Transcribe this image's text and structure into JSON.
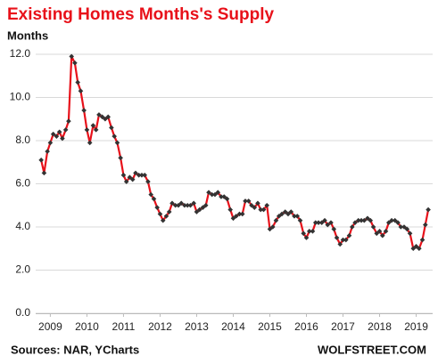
{
  "chart_data": {
    "type": "line",
    "title": "Existing Homes Months's Supply",
    "y_label": "Months",
    "source": "Sources: NAR, YCharts",
    "watermark": "WOLFSTREET.COM",
    "x": [
      2008.75,
      2008.83,
      2008.92,
      2009.0,
      2009.08,
      2009.17,
      2009.25,
      2009.33,
      2009.42,
      2009.5,
      2009.58,
      2009.67,
      2009.75,
      2009.83,
      2009.92,
      2010.0,
      2010.08,
      2010.17,
      2010.25,
      2010.33,
      2010.42,
      2010.5,
      2010.58,
      2010.67,
      2010.75,
      2010.83,
      2010.92,
      2011.0,
      2011.08,
      2011.17,
      2011.25,
      2011.33,
      2011.42,
      2011.5,
      2011.58,
      2011.67,
      2011.75,
      2011.83,
      2011.92,
      2012.0,
      2012.08,
      2012.17,
      2012.25,
      2012.33,
      2012.42,
      2012.5,
      2012.58,
      2012.67,
      2012.75,
      2012.83,
      2012.92,
      2013.0,
      2013.08,
      2013.17,
      2013.25,
      2013.33,
      2013.42,
      2013.5,
      2013.58,
      2013.67,
      2013.75,
      2013.83,
      2013.92,
      2014.0,
      2014.08,
      2014.17,
      2014.25,
      2014.33,
      2014.42,
      2014.5,
      2014.58,
      2014.67,
      2014.75,
      2014.83,
      2014.92,
      2015.0,
      2015.08,
      2015.17,
      2015.25,
      2015.33,
      2015.42,
      2015.5,
      2015.58,
      2015.67,
      2015.75,
      2015.83,
      2015.92,
      2016.0,
      2016.08,
      2016.17,
      2016.25,
      2016.33,
      2016.42,
      2016.5,
      2016.58,
      2016.67,
      2016.75,
      2016.83,
      2016.92,
      2017.0,
      2017.08,
      2017.17,
      2017.25,
      2017.33,
      2017.42,
      2017.5,
      2017.58,
      2017.67,
      2017.75,
      2017.83,
      2017.92,
      2018.0,
      2018.08,
      2018.17,
      2018.25,
      2018.33,
      2018.42,
      2018.5,
      2018.58,
      2018.67,
      2018.75,
      2018.83,
      2018.92,
      2019.0,
      2019.08,
      2019.17,
      2019.25,
      2019.33
    ],
    "series": [
      {
        "color": "#e8111a",
        "marker_color": "#333333",
        "values": [
          7.1,
          6.5,
          7.5,
          7.9,
          8.3,
          8.2,
          8.4,
          8.1,
          8.5,
          8.9,
          11.9,
          11.6,
          10.7,
          10.3,
          9.4,
          8.5,
          7.9,
          8.7,
          8.5,
          9.2,
          9.1,
          9.0,
          9.1,
          8.6,
          8.2,
          7.9,
          7.2,
          6.4,
          6.1,
          6.3,
          6.2,
          6.5,
          6.4,
          6.4,
          6.4,
          6.1,
          5.5,
          5.3,
          4.9,
          4.6,
          4.3,
          4.5,
          4.7,
          5.1,
          5.0,
          5.0,
          5.1,
          5.0,
          5.0,
          5.0,
          5.1,
          4.7,
          4.8,
          4.9,
          5.0,
          5.6,
          5.5,
          5.5,
          5.6,
          5.4,
          5.4,
          5.3,
          4.8,
          4.4,
          4.5,
          4.6,
          4.6,
          5.2,
          5.2,
          5.0,
          4.9,
          5.1,
          4.8,
          4.8,
          5.0,
          3.9,
          4.0,
          4.3,
          4.5,
          4.6,
          4.7,
          4.6,
          4.7,
          4.5,
          4.5,
          4.3,
          3.7,
          3.5,
          3.8,
          3.8,
          4.2,
          4.2,
          4.2,
          4.3,
          4.1,
          4.2,
          3.9,
          3.5,
          3.2,
          3.4,
          3.4,
          3.6,
          4.0,
          4.2,
          4.3,
          4.3,
          4.3,
          4.4,
          4.3,
          4.0,
          3.7,
          3.8,
          3.6,
          3.8,
          4.2,
          4.3,
          4.3,
          4.2,
          4.0,
          4.0,
          3.9,
          3.7,
          3.0,
          3.1,
          3.0,
          3.4,
          4.1,
          4.8
        ]
      }
    ],
    "xlim": [
      2008.6,
      2019.45
    ],
    "xticks": [
      2009,
      2010,
      2011,
      2012,
      2013,
      2014,
      2015,
      2016,
      2017,
      2018,
      2019
    ],
    "ylim": [
      0,
      12
    ],
    "yticks": [
      {
        "value": 0,
        "label": "0.0"
      },
      {
        "value": 2,
        "label": "2.0"
      },
      {
        "value": 4,
        "label": "4.0"
      },
      {
        "value": 6,
        "label": "6.0"
      },
      {
        "value": 8,
        "label": "8.0"
      },
      {
        "value": 10,
        "label": "10.0"
      },
      {
        "value": 12,
        "label": "12.0"
      }
    ],
    "grid": true
  }
}
